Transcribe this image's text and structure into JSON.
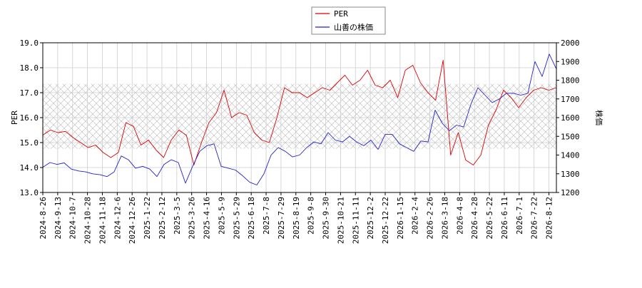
{
  "chart_data": {
    "type": "line",
    "grid": true,
    "legend_position": "top-center",
    "left_axis": {
      "label": "PER",
      "ylim": [
        13.0,
        19.0
      ],
      "ticks": [
        "13.0",
        "14.0",
        "15.0",
        "16.0",
        "17.0",
        "18.0",
        "19.0"
      ]
    },
    "right_axis": {
      "label": "株価",
      "ylim": [
        1200,
        2000
      ],
      "ticks": [
        "1200",
        "1300",
        "1400",
        "1500",
        "1600",
        "1700",
        "1800",
        "1900",
        "2000"
      ]
    },
    "x_ticks": [
      "2024-8-26",
      "2024-9-13",
      "2024-10-7",
      "2024-10-28",
      "2024-11-18",
      "2024-12-6",
      "2024-12-26",
      "2025-1-22",
      "2025-2-12",
      "2025-3-5",
      "2025-3-26",
      "2025-4-16",
      "2025-5-9",
      "2025-5-29",
      "2025-6-18",
      "2025-7-8",
      "2025-7-29",
      "2025-8-19",
      "2025-9-8",
      "2025-9-30",
      "2025-10-21",
      "2025-11-11",
      "2025-12-2",
      "2025-12-22",
      "2026-1-15",
      "2026-2-4",
      "2026-2-26",
      "2026-3-18",
      "2026-4-8",
      "2026-4-28",
      "2026-5-22",
      "2026-6-11",
      "2026-7-1",
      "2026-7-22",
      "2026-8-12"
    ],
    "shaded_band": {
      "axis": "left",
      "range": [
        14.75,
        17.35
      ]
    },
    "series": [
      {
        "name": "PER",
        "axis": "left",
        "color": "#dd0000",
        "values": [
          15.3,
          15.5,
          15.4,
          15.45,
          15.2,
          15.0,
          14.8,
          14.9,
          14.6,
          14.4,
          14.6,
          15.8,
          15.65,
          14.9,
          15.1,
          14.7,
          14.4,
          15.1,
          15.5,
          15.3,
          14.1,
          15.0,
          15.8,
          16.2,
          17.1,
          16.0,
          16.2,
          16.1,
          15.4,
          15.1,
          15.0,
          16.0,
          17.2,
          17.0,
          17.0,
          16.8,
          17.0,
          17.2,
          17.1,
          17.4,
          17.7,
          17.3,
          17.5,
          17.9,
          17.3,
          17.2,
          17.5,
          16.8,
          17.9,
          18.1,
          17.4,
          17.0,
          16.7,
          18.3,
          14.5,
          15.4,
          14.3,
          14.1,
          14.5,
          15.7,
          16.3,
          17.1,
          16.8,
          16.4,
          16.8,
          17.1,
          17.2,
          17.1,
          17.2
        ]
      },
      {
        "name": "山善の株価",
        "axis": "right",
        "color": "#2222cc",
        "values": [
          1335,
          1360,
          1350,
          1358,
          1325,
          1315,
          1310,
          1300,
          1295,
          1285,
          1310,
          1395,
          1375,
          1330,
          1340,
          1325,
          1285,
          1350,
          1375,
          1360,
          1250,
          1340,
          1420,
          1450,
          1460,
          1340,
          1330,
          1320,
          1290,
          1255,
          1240,
          1300,
          1400,
          1440,
          1420,
          1390,
          1400,
          1440,
          1470,
          1460,
          1520,
          1480,
          1470,
          1500,
          1470,
          1450,
          1480,
          1430,
          1510,
          1510,
          1460,
          1440,
          1420,
          1475,
          1470,
          1640,
          1570,
          1530,
          1560,
          1550,
          1670,
          1760,
          1720,
          1680,
          1700,
          1730,
          1730,
          1720,
          1730,
          1900,
          1820,
          1940,
          1860
        ]
      }
    ]
  }
}
